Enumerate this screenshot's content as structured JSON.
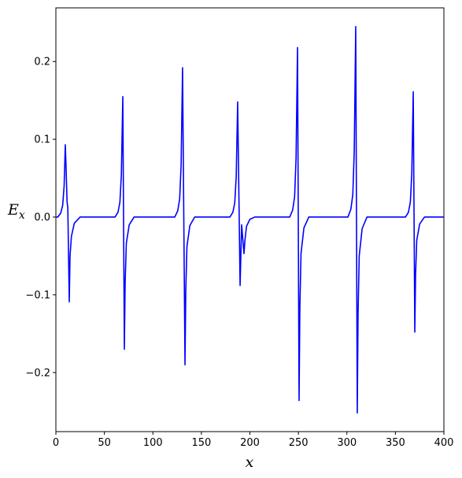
{
  "chart_data": {
    "type": "line",
    "xlabel": "x",
    "ylabel": {
      "main": "E",
      "sub": "x"
    },
    "series": [
      {
        "color": "#0000ff",
        "x": [
          0,
          2,
          5,
          7,
          8.5,
          9.7,
          10.6,
          11.5,
          12.3,
          13.8,
          14.6,
          16,
          19,
          25,
          61,
          64,
          66,
          67.5,
          69.0,
          70.6,
          71.4,
          72.6,
          75.6,
          80.6,
          122.6,
          125.6,
          127.6,
          129.1,
          130.6,
          133.1,
          133.9,
          135.1,
          138.1,
          143.1,
          179.4,
          182.4,
          184.4,
          185.9,
          187.4,
          189.9,
          191.5,
          193.9,
          194.9,
          196.5,
          200,
          205,
          241.1,
          244.1,
          246.1,
          247.6,
          249.1,
          250.7,
          251.5,
          252.7,
          255.7,
          260.7,
          301.1,
          304.1,
          306.1,
          307.6,
          309.1,
          310.7,
          311.5,
          312.7,
          315.7,
          320.7,
          360.4,
          363.4,
          365.4,
          366.9,
          368.4,
          370.0,
          370.8,
          372.0,
          375.0,
          380,
          400
        ],
        "values": [
          0,
          0,
          0.005,
          0.015,
          0.04,
          0.093,
          0.06,
          0.02,
          0.012,
          -0.109,
          -0.05,
          -0.025,
          -0.008,
          0,
          0,
          0.006,
          0.019,
          0.054,
          0.155,
          -0.17,
          -0.085,
          -0.034,
          -0.01,
          0,
          0,
          0.008,
          0.023,
          0.067,
          0.192,
          -0.19,
          -0.095,
          -0.038,
          -0.011,
          0,
          0,
          0.006,
          0.018,
          0.052,
          0.148,
          -0.088,
          -0.01,
          -0.047,
          -0.03,
          -0.012,
          -0.003,
          0,
          0,
          0.009,
          0.026,
          0.076,
          0.218,
          -0.236,
          -0.118,
          -0.047,
          -0.014,
          0,
          0,
          0.01,
          0.029,
          0.086,
          0.245,
          -0.252,
          -0.126,
          -0.05,
          -0.015,
          0,
          0,
          0.006,
          0.019,
          0.056,
          0.161,
          -0.148,
          -0.074,
          -0.03,
          -0.009,
          0,
          0
        ]
      }
    ],
    "xlim": [
      0,
      400
    ],
    "ylim": [
      -0.276,
      0.269
    ],
    "xticks": [
      0,
      50,
      100,
      150,
      200,
      250,
      300,
      350,
      400
    ],
    "yticks": [
      {
        "value": -0.2,
        "label": "−0.2"
      },
      {
        "value": -0.1,
        "label": "−0.1"
      },
      {
        "value": 0,
        "label": "0.0"
      },
      {
        "value": 0.1,
        "label": "0.1"
      },
      {
        "value": 0.2,
        "label": "0.2"
      }
    ]
  }
}
